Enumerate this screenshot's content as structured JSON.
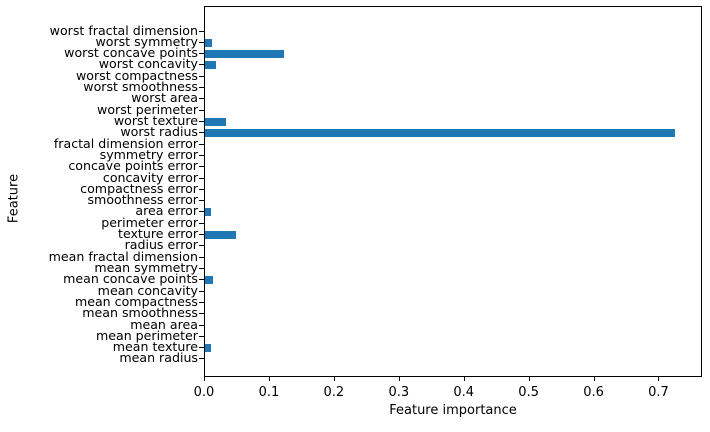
{
  "figure": {
    "background": "#ffffff",
    "text_color": "#000000",
    "spine_color": "#000000"
  },
  "chart_data": {
    "type": "bar",
    "orientation": "horizontal",
    "title": "",
    "xlabel": "Feature importance",
    "ylabel": "Feature",
    "xlim": [
      0,
      0.767
    ],
    "grid": false,
    "legend_position": "none",
    "bar_color": "#1f77b4",
    "xticks": [
      0.0,
      0.1,
      0.2,
      0.3,
      0.4,
      0.5,
      0.6,
      0.7
    ],
    "xtick_labels": [
      "0.0",
      "0.1",
      "0.2",
      "0.3",
      "0.4",
      "0.5",
      "0.6",
      "0.7"
    ],
    "category_order": "top-to-bottom",
    "categories": [
      "worst fractal dimension",
      "worst symmetry",
      "worst concave points",
      "worst concavity",
      "worst compactness",
      "worst smoothness",
      "worst area",
      "worst perimeter",
      "worst texture",
      "worst radius",
      "fractal dimension error",
      "symmetry error",
      "concave points error",
      "concavity error",
      "compactness error",
      "smoothness error",
      "area error",
      "perimeter error",
      "texture error",
      "radius error",
      "mean fractal dimension",
      "mean symmetry",
      "mean concave points",
      "mean concavity",
      "mean compactness",
      "mean smoothness",
      "mean area",
      "mean perimeter",
      "mean texture",
      "mean radius"
    ],
    "values": [
      0,
      0.011,
      0.122,
      0.017,
      0,
      0,
      0,
      0,
      0.032,
      0.727,
      0,
      0,
      0,
      0,
      0,
      0,
      0.01,
      0,
      0.048,
      0,
      0,
      0,
      0.012,
      0,
      0,
      0,
      0,
      0,
      0.01,
      0
    ]
  }
}
